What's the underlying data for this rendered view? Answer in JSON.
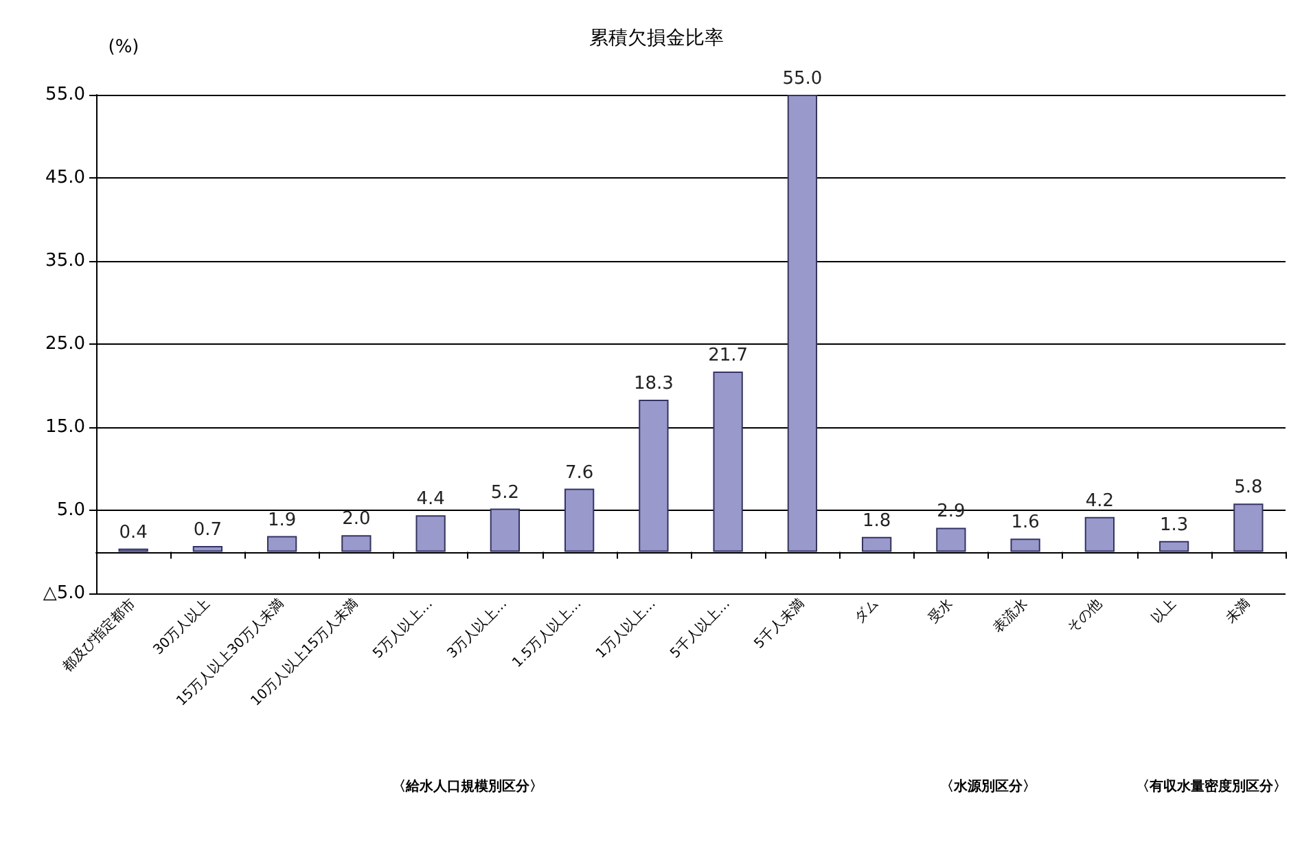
{
  "chart_data": {
    "type": "bar",
    "title": "累積欠損金比率",
    "ylabel": "(%)",
    "categories": [
      "都及び指定都市",
      "30万人以上",
      "15万人以上30万人未満",
      "10万人以上15万人未満",
      "5万人以上…",
      "3万人以上…",
      "1.5万人以上…",
      "1万人以上…",
      "5千人以上…",
      "5千人未満",
      "ダム",
      "受水",
      "表流水",
      "その他",
      "以上",
      "未満"
    ],
    "values": [
      0.4,
      0.7,
      1.9,
      2.0,
      4.4,
      5.2,
      7.6,
      18.3,
      21.7,
      55.0,
      1.8,
      2.9,
      1.6,
      4.2,
      1.3,
      5.8
    ],
    "value_labels": [
      "0.4",
      "0.7",
      "1.9",
      "2.0",
      "4.4",
      "5.2",
      "7.6",
      "18.3",
      "21.7",
      "55.0",
      "1.8",
      "2.9",
      "1.6",
      "4.2",
      "1.3",
      "5.8"
    ],
    "color": "#9999cc",
    "ylim": [
      -5,
      55
    ],
    "yticks": [
      {
        "value": -5,
        "label": "△5.0"
      },
      {
        "value": 5,
        "label": "5.0"
      },
      {
        "value": 15,
        "label": "15.0"
      },
      {
        "value": 25,
        "label": "25.0"
      },
      {
        "value": 35,
        "label": "35.0"
      },
      {
        "value": 45,
        "label": "45.0"
      },
      {
        "value": 55,
        "label": "55.0"
      }
    ],
    "grid": "y",
    "annotations": [
      "〈給水人口規模別区分〉",
      "〈水源別区分〉",
      "〈有収水量密度別区分〉"
    ]
  }
}
